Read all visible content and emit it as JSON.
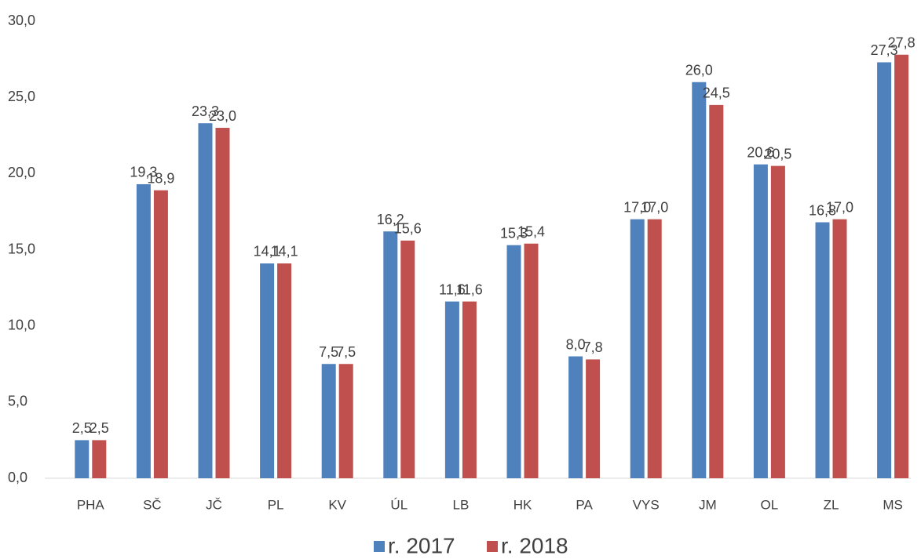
{
  "chart_data": {
    "type": "bar",
    "categories": [
      "PHA",
      "SČ",
      "JČ",
      "PL",
      "KV",
      "ÚL",
      "LB",
      "HK",
      "PA",
      "VYS",
      "JM",
      "OL",
      "ZL",
      "MS"
    ],
    "series": [
      {
        "name": "r. 2017",
        "color": "#4f81bd",
        "values": [
          2.5,
          19.3,
          23.3,
          14.1,
          7.5,
          16.2,
          11.6,
          15.3,
          8.0,
          17.0,
          26.0,
          20.6,
          16.8,
          27.3
        ],
        "value_labels": [
          "2,5",
          "19,3",
          "23,3",
          "14,1",
          "7,5",
          "16,2",
          "11,6",
          "15,3",
          "8,0",
          "17,0",
          "26,0",
          "20,6",
          "16,8",
          "27,3"
        ]
      },
      {
        "name": "r. 2018",
        "color": "#c0504d",
        "values": [
          2.5,
          18.9,
          23.0,
          14.1,
          7.5,
          15.6,
          11.6,
          15.4,
          7.8,
          17.0,
          24.5,
          20.5,
          17.0,
          27.8
        ],
        "value_labels": [
          "2,5",
          "18,9",
          "23,0",
          "14,1",
          "7,5",
          "15,6",
          "11,6",
          "15,4",
          "7,8",
          "17,0",
          "24,5",
          "20,5",
          "17,0",
          "27,8"
        ]
      }
    ],
    "ylim": [
      0,
      30
    ],
    "yticks": [
      {
        "value": 0,
        "label": "0,0"
      },
      {
        "value": 5,
        "label": "5,0"
      },
      {
        "value": 10,
        "label": "10,0"
      },
      {
        "value": 15,
        "label": "15,0"
      },
      {
        "value": 20,
        "label": "20,0"
      },
      {
        "value": 25,
        "label": "25,0"
      },
      {
        "value": 30,
        "label": "30,0"
      }
    ],
    "grid": false,
    "legend": "bottom"
  }
}
